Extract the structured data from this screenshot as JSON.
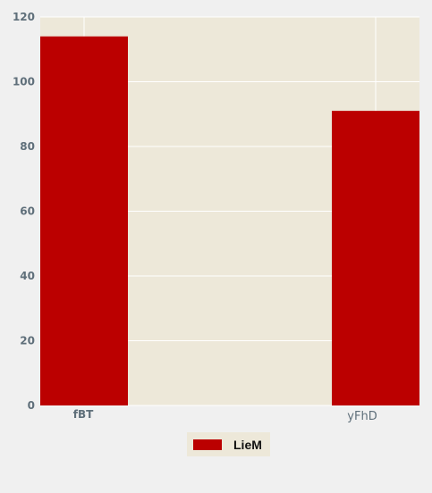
{
  "chart_data": {
    "type": "bar",
    "categories": [
      "fBT",
      "yFhD"
    ],
    "series": [
      {
        "name": "LieM",
        "values": [
          114,
          91
        ]
      }
    ],
    "ylim": [
      0,
      120
    ],
    "yticks": [
      0,
      20,
      40,
      60,
      80,
      100,
      120
    ],
    "grid": true,
    "legend_position": "bottom-center"
  },
  "colors": {
    "bar": "#bb0000",
    "plot_background": "#ede8d9",
    "grid": "#ffffff",
    "tick_label": "#5f6f7a",
    "page_background": "#f0f0f0"
  }
}
